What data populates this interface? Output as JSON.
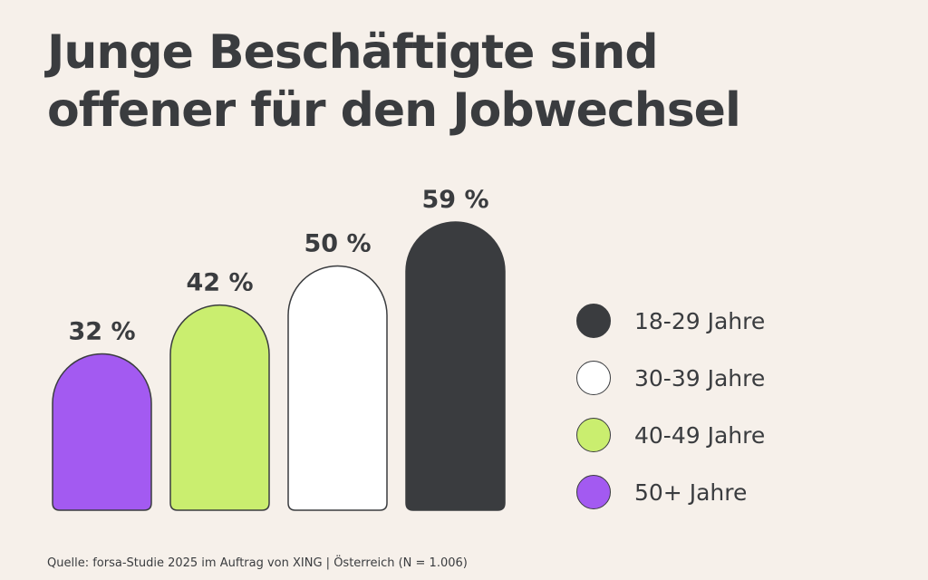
{
  "title_lines": [
    "Junge Beschäftigte sind",
    "offener für den Jobwechsel"
  ],
  "source": "Quelle: forsa-Studie 2025 im Auftrag von XING | Österreich (N = 1.006)",
  "colors": {
    "background": "#f6f0ea",
    "text": "#3a3c3f",
    "outline": "#3a3c3f"
  },
  "chart_data": {
    "type": "bar",
    "title": "Junge Beschäftigte sind offener für den Jobwechsel",
    "categories": [
      "50+ Jahre",
      "40-49 Jahre",
      "30-39 Jahre",
      "18-29 Jahre"
    ],
    "values": [
      32,
      42,
      50,
      59
    ],
    "value_labels": [
      "32 %",
      "42 %",
      "50 %",
      "59 %"
    ],
    "unit": "%",
    "ylim": [
      0,
      100
    ],
    "bar_shape": "rounded-top",
    "colors": [
      "#a35af1",
      "#caee6f",
      "#ffffff",
      "#3a3c3f"
    ],
    "grid": false,
    "axes_visible": false,
    "legend_position": "right",
    "legend": [
      {
        "label": "18-29 Jahre",
        "color": "#3a3c3f"
      },
      {
        "label": "30-39 Jahre",
        "color": "#ffffff"
      },
      {
        "label": "40-49 Jahre",
        "color": "#caee6f"
      },
      {
        "label": "50+ Jahre",
        "color": "#a35af1"
      }
    ]
  }
}
